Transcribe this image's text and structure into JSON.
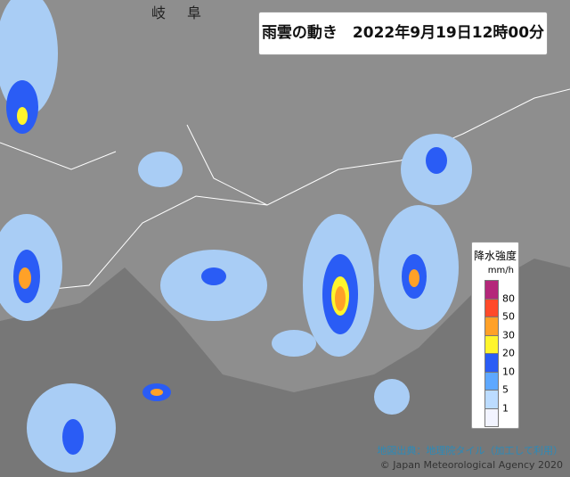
{
  "header": {
    "title": "雨雲の動き　2022年9月19日12時00分"
  },
  "map_labels": [
    "岐",
    "阜"
  ],
  "legend": {
    "title": "降水強度",
    "unit": "mm/h",
    "thresholds": [
      80,
      50,
      30,
      20,
      10,
      5,
      1
    ],
    "colors": [
      "#b4287a",
      "#ff4a2a",
      "#ffa128",
      "#fff52c",
      "#2a5cf5",
      "#5ea8ff",
      "#bcdcff",
      "#f2f4ff"
    ]
  },
  "credits": {
    "source": "地図出典：地理院タイル（加工して利用）",
    "copyright": "© Japan Meteorological Agency 2020"
  }
}
